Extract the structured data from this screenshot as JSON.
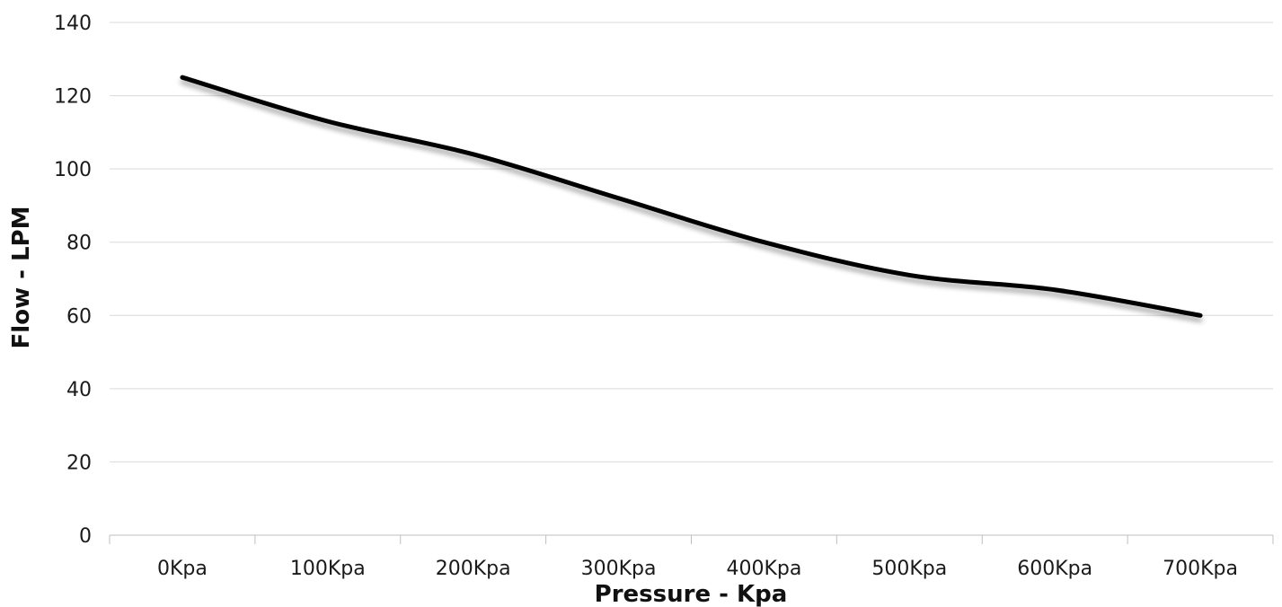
{
  "chart_data": {
    "type": "line",
    "categories": [
      "0Kpa",
      "100Kpa",
      "200Kpa",
      "300Kpa",
      "400Kpa",
      "500Kpa",
      "600Kpa",
      "700Kpa"
    ],
    "series": [
      {
        "values": [
          125,
          113,
          104,
          92,
          80,
          71,
          67,
          60
        ]
      }
    ],
    "xlabel": "Pressure - Kpa",
    "ylabel": "Flow - LPM",
    "ylim": [
      0,
      140
    ],
    "yticks": [
      0,
      20,
      40,
      60,
      80,
      100,
      120,
      140
    ],
    "grid": true,
    "legend": "none",
    "line_color": "#000000",
    "grid_color": "#d9d9d9"
  }
}
